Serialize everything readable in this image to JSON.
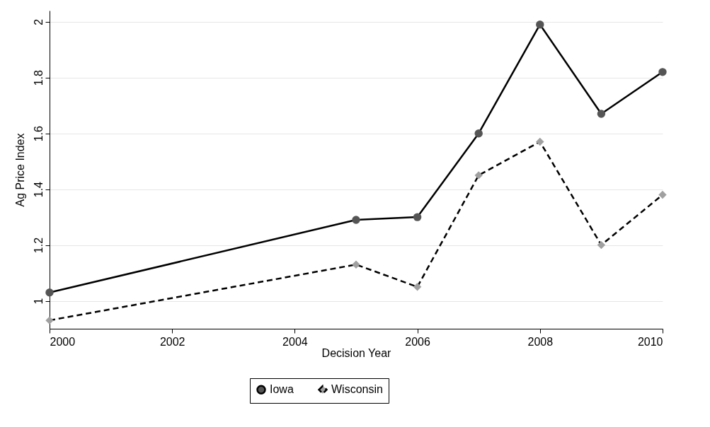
{
  "chart_data": {
    "type": "line",
    "xlabel": "Decision Year",
    "ylabel": "Ag Price Index",
    "x": [
      2000,
      2005,
      2006,
      2007,
      2008,
      2009,
      2010
    ],
    "series": [
      {
        "name": "Iowa",
        "color": "#555555",
        "marker": "circle",
        "line_style": "solid",
        "values": [
          1.03,
          1.29,
          1.3,
          1.6,
          1.99,
          1.67,
          1.82
        ]
      },
      {
        "name": "Wisconsin",
        "color": "#a0a0a0",
        "marker": "diamond",
        "line_style": "dashed",
        "values": [
          0.93,
          1.13,
          1.05,
          1.45,
          1.57,
          1.2,
          1.38
        ]
      }
    ],
    "xlim": [
      2000,
      2010
    ],
    "xticks": [
      2000,
      2002,
      2004,
      2006,
      2008,
      2010
    ],
    "ylim": [
      0.9,
      2.04
    ],
    "yticks": [
      1,
      1.2,
      1.4,
      1.6,
      1.8,
      2
    ],
    "grid": "y",
    "legend": "bottom"
  }
}
